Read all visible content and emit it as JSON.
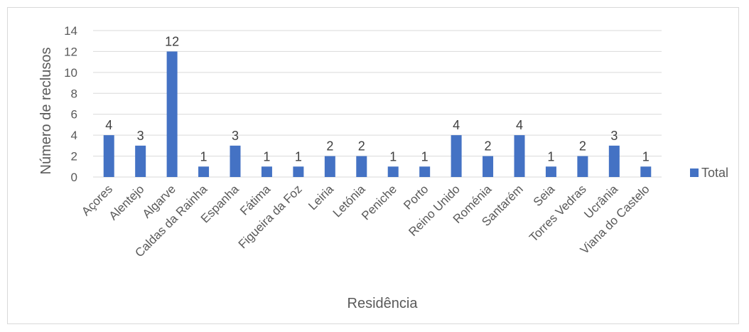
{
  "chart_data": {
    "type": "bar",
    "title": "",
    "xlabel": "Residência",
    "ylabel": "Número de reclusos",
    "ylim": [
      0,
      14
    ],
    "yticks": [
      0,
      2,
      4,
      6,
      8,
      10,
      12,
      14
    ],
    "grid": true,
    "legend_position": "right",
    "bar_color": "#4472c4",
    "categories": [
      "Açores",
      "Alentejo",
      "Algarve",
      "Caldas da Rainha",
      "Espanha",
      "Fátima",
      "Figueira da Foz",
      "Leiria",
      "Letónia",
      "Peniche",
      "Porto",
      "Reino Unido",
      "Roménia",
      "Santarém",
      "Seia",
      "Torres Vedras",
      "Ucrânia",
      "Viana do Castelo"
    ],
    "series": [
      {
        "name": "Total",
        "values": [
          4,
          3,
          12,
          1,
          3,
          1,
          1,
          2,
          2,
          1,
          1,
          4,
          2,
          4,
          1,
          2,
          3,
          1
        ]
      }
    ]
  }
}
